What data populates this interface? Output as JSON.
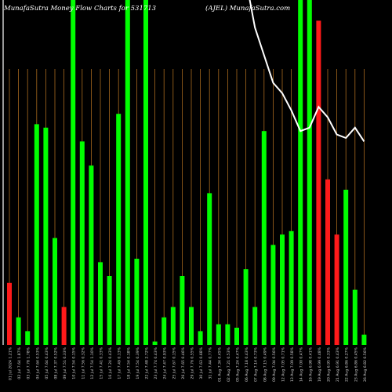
{
  "header": {
    "title": "MunafaSutra  Money Flow  Charts for 531713",
    "site": "(AJEL) MunafaSutra.com"
  },
  "chart_data": {
    "type": "bar",
    "title": "MunafaSutra  Money Flow  Charts for 531713",
    "xlabel": "",
    "ylabel": "",
    "grid": true,
    "ylim": [
      0,
      100
    ],
    "colors": {
      "up": "#00ff00",
      "down": "#ff1a1a",
      "grid": "#a86a1e",
      "line": "#ffffff",
      "background": "#000000"
    },
    "categories": [
      "01 Jul 2024 1.21%",
      "02 Jul 7.64 1.87%",
      "03 Jul 7.78 1.78%",
      "04 Jul 7.64 0.53%",
      "05 Jul 7.64 0.43%",
      "08 Jul 7.37 0.52%",
      "09 Jul 7.51 0.33%",
      "10 Jul 7.54 0.15%",
      "11 Jul 7.56 0.32%",
      "12 Jul 7.54 1.10%",
      "15 Jul 7.41 0.33%",
      "16 Jul 7.24 0.43%",
      "17 Jul 7.49 0.13%",
      "18 Jul 7.54 0.18%",
      "19 Jul 7.54 0.39%",
      "22 Jul 7.48 2.72%",
      "23 Jul 7.74 0.43%",
      "24 Jul 7.47 0.93%",
      "25 Jul 7.67 0.15%",
      "26 Jul 7.65 0.46%",
      "29 Jul 7.76 0.55%",
      "30 Jul 7.63 0.68%",
      "31 Jul 7.44 0.77%",
      "01 Aug 7.34 0.45%",
      "02 Aug 7.21 0.53%",
      "05 Aug 7.24 0.47%",
      "06 Aug 7.18 0.43%",
      "07 Aug 7.14 0.73%",
      "08 Aug 7.15 0.49%",
      "09 Aug 7.04 0.56%",
      "12 Aug 7.05 0.71%",
      "13 Aug 7.09 0.58%",
      "14 Aug 7.00 0.47%",
      "16 Aug 6.98 0.41%",
      "19 Aug 6.99 0.48%",
      "20 Aug 6.95 0.33%",
      "21 Aug 6.91 0.43%",
      "22 Aug 6.86 0.27%",
      "23 Aug 6.86 0.45%",
      "26 Aug 6.82 0.56%"
    ],
    "values": [
      18,
      8,
      4,
      64,
      63,
      31,
      11,
      100,
      59,
      52,
      24,
      20,
      67,
      100,
      25,
      100,
      1,
      8,
      11,
      20,
      11,
      4,
      44,
      6,
      6,
      5,
      22,
      11,
      62,
      29,
      32,
      33,
      100,
      100,
      94,
      48,
      32,
      45,
      16,
      3
    ],
    "directions": [
      "down",
      "up",
      "up",
      "up",
      "up",
      "up",
      "down",
      "up",
      "up",
      "up",
      "up",
      "up",
      "up",
      "up",
      "up",
      "up",
      "up",
      "up",
      "up",
      "up",
      "up",
      "up",
      "up",
      "up",
      "up",
      "up",
      "up",
      "up",
      "up",
      "up",
      "up",
      "up",
      "up",
      "up",
      "down",
      "down",
      "down",
      "up",
      "up",
      "up"
    ],
    "price_line": [
      null,
      null,
      null,
      null,
      null,
      null,
      null,
      null,
      null,
      null,
      null,
      null,
      null,
      null,
      null,
      null,
      null,
      null,
      null,
      null,
      null,
      null,
      null,
      null,
      null,
      116,
      106,
      92,
      84,
      76,
      73,
      68,
      62,
      63,
      69,
      66,
      61,
      60,
      63,
      59
    ]
  }
}
